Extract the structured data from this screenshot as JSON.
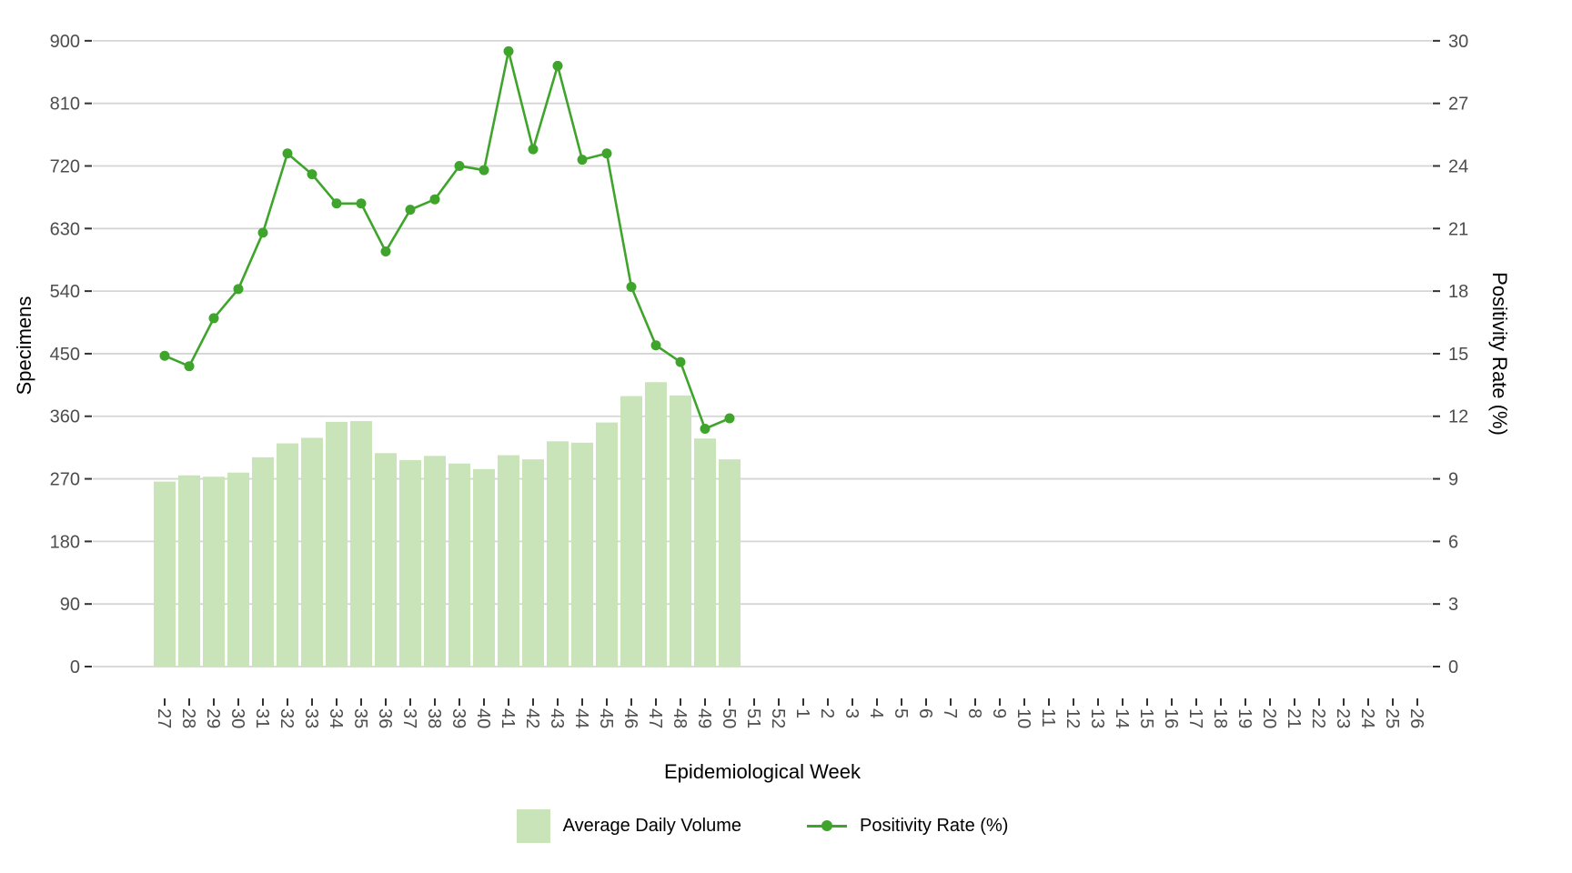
{
  "chart_data": {
    "type": "bar",
    "subtype": "bar-line-combo",
    "title": "",
    "xlabel": "Epidemiological Week",
    "ylabel_left": "Specimens",
    "ylabel_right": "Positivity Rate (%)",
    "x_categories": [
      "27",
      "28",
      "29",
      "30",
      "31",
      "32",
      "33",
      "34",
      "35",
      "36",
      "37",
      "38",
      "39",
      "40",
      "41",
      "42",
      "43",
      "44",
      "45",
      "46",
      "47",
      "48",
      "49",
      "50",
      "51",
      "52",
      "1",
      "2",
      "3",
      "4",
      "5",
      "6",
      "7",
      "8",
      "9",
      "10",
      "11",
      "12",
      "13",
      "14",
      "15",
      "16",
      "17",
      "18",
      "19",
      "20",
      "21",
      "22",
      "23",
      "24",
      "25",
      "26"
    ],
    "left_axis_ticks": [
      0,
      90,
      180,
      270,
      360,
      450,
      540,
      630,
      720,
      810,
      900
    ],
    "right_axis_ticks": [
      0,
      3,
      6,
      9,
      12,
      15,
      18,
      21,
      24,
      27,
      30
    ],
    "ylim_left": [
      0,
      900
    ],
    "ylim_right": [
      0,
      30
    ],
    "grid": "horizontal-major-only",
    "legend_position": "bottom",
    "series": [
      {
        "name": "Average Daily Volume",
        "type": "bar",
        "axis": "left",
        "color": "#c9e4b9",
        "weeks": [
          "27",
          "28",
          "29",
          "30",
          "31",
          "32",
          "33",
          "34",
          "35",
          "36",
          "37",
          "38",
          "39",
          "40",
          "41",
          "42",
          "43",
          "44",
          "45",
          "46",
          "47",
          "48",
          "49",
          "50"
        ],
        "values": [
          266,
          275,
          273,
          279,
          301,
          321,
          329,
          352,
          353,
          307,
          297,
          303,
          292,
          284,
          304,
          298,
          324,
          322,
          351,
          389,
          409,
          390,
          328,
          298
        ]
      },
      {
        "name": "Positivity Rate (%)",
        "type": "line",
        "axis": "right",
        "color": "#3fa42c",
        "weeks": [
          "27",
          "28",
          "29",
          "30",
          "31",
          "32",
          "33",
          "34",
          "35",
          "36",
          "37",
          "38",
          "39",
          "40",
          "41",
          "42",
          "43",
          "44",
          "45",
          "46",
          "47",
          "48",
          "49",
          "50"
        ],
        "values": [
          14.9,
          14.4,
          16.7,
          18.1,
          20.8,
          24.6,
          23.6,
          22.2,
          22.2,
          19.9,
          21.9,
          22.4,
          24.0,
          23.8,
          29.5,
          24.8,
          28.8,
          24.3,
          24.6,
          18.2,
          15.4,
          14.6,
          11.4,
          11.9
        ]
      }
    ],
    "colors": {
      "bar_fill": "#c9e4b9",
      "line": "#3fa42c",
      "gridline": "#d5d5d5",
      "tick_mark": "#333333",
      "tick_label": "#4d4d4d",
      "axis_title": "#000000"
    }
  }
}
